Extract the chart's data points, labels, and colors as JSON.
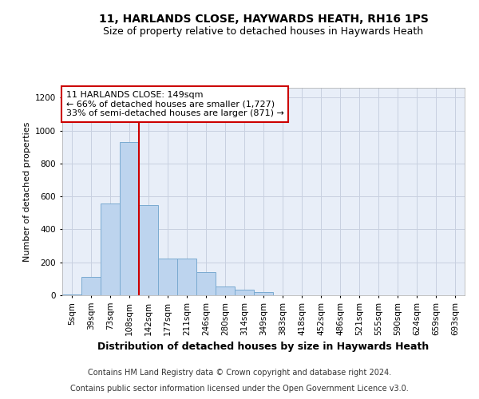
{
  "title": "11, HARLANDS CLOSE, HAYWARDS HEATH, RH16 1PS",
  "subtitle": "Size of property relative to detached houses in Haywards Heath",
  "xlabel": "Distribution of detached houses by size in Haywards Heath",
  "ylabel": "Number of detached properties",
  "categories": [
    "5sqm",
    "39sqm",
    "73sqm",
    "108sqm",
    "142sqm",
    "177sqm",
    "211sqm",
    "246sqm",
    "280sqm",
    "314sqm",
    "349sqm",
    "383sqm",
    "418sqm",
    "452sqm",
    "486sqm",
    "521sqm",
    "555sqm",
    "590sqm",
    "624sqm",
    "659sqm",
    "693sqm"
  ],
  "bar_heights": [
    5,
    110,
    555,
    930,
    550,
    225,
    225,
    140,
    55,
    35,
    20,
    0,
    0,
    0,
    0,
    0,
    0,
    0,
    0,
    0,
    0
  ],
  "bar_color": "#bdd4ee",
  "bar_edge_color": "#7aaad0",
  "vline_color": "#cc0000",
  "annotation_text": "11 HARLANDS CLOSE: 149sqm\n← 66% of detached houses are smaller (1,727)\n33% of semi-detached houses are larger (871) →",
  "annotation_box_facecolor": "white",
  "annotation_box_edgecolor": "#cc0000",
  "ylim": [
    0,
    1260
  ],
  "yticks": [
    0,
    200,
    400,
    600,
    800,
    1000,
    1200
  ],
  "grid_color": "#c8d0e0",
  "background_color": "#e8eef8",
  "footer_line1": "Contains HM Land Registry data © Crown copyright and database right 2024.",
  "footer_line2": "Contains public sector information licensed under the Open Government Licence v3.0.",
  "title_fontsize": 10,
  "subtitle_fontsize": 9,
  "ylabel_fontsize": 8,
  "xlabel_fontsize": 9,
  "tick_fontsize": 7.5,
  "annotation_fontsize": 8,
  "footer_fontsize": 7
}
